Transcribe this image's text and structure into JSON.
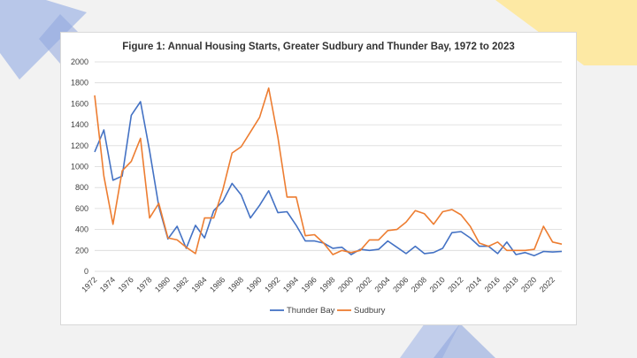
{
  "colors": {
    "thunder_bay": "#4472c4",
    "sudbury": "#ed7d31",
    "decor_blue": "#aebfe8",
    "decor_blue_dark": "#8fa6de",
    "decor_yellow": "#fde9a4",
    "grid": "#d9d9d9"
  },
  "chart_data": {
    "type": "line",
    "title": "Figure 1: Annual Housing Starts, Greater Sudbury and Thunder Bay, 1972 to 2023",
    "xlabel": "",
    "ylabel": "",
    "ylim": [
      0,
      2000
    ],
    "yticks": [
      0,
      200,
      400,
      600,
      800,
      1000,
      1200,
      1400,
      1600,
      1800,
      2000
    ],
    "xtick_labels": [
      "1972",
      "1974",
      "1976",
      "1978",
      "1980",
      "1982",
      "1984",
      "1986",
      "1988",
      "1990",
      "1992",
      "1994",
      "1996",
      "1998",
      "2000",
      "2002",
      "2004",
      "2006",
      "2008",
      "2010",
      "2012",
      "2014",
      "2016",
      "2018",
      "2020",
      "2022"
    ],
    "x": [
      1972,
      1973,
      1974,
      1975,
      1976,
      1977,
      1978,
      1979,
      1980,
      1981,
      1982,
      1983,
      1984,
      1985,
      1986,
      1987,
      1988,
      1989,
      1990,
      1991,
      1992,
      1993,
      1994,
      1995,
      1996,
      1997,
      1998,
      1999,
      2000,
      2001,
      2002,
      2003,
      2004,
      2005,
      2006,
      2007,
      2008,
      2009,
      2010,
      2011,
      2012,
      2013,
      2014,
      2015,
      2016,
      2017,
      2018,
      2019,
      2020,
      2021,
      2022,
      2023
    ],
    "grid": true,
    "legend": "bottom",
    "series": [
      {
        "name": "Thunder Bay",
        "values": [
          1140,
          1350,
          870,
          910,
          1490,
          1620,
          1150,
          620,
          310,
          430,
          220,
          440,
          320,
          580,
          670,
          840,
          730,
          510,
          630,
          770,
          560,
          570,
          440,
          290,
          290,
          270,
          220,
          230,
          160,
          210,
          200,
          210,
          290,
          230,
          170,
          240,
          170,
          180,
          220,
          370,
          380,
          320,
          240,
          240,
          170,
          280,
          160,
          180,
          150,
          190,
          185,
          190
        ]
      },
      {
        "name": "Sudbury",
        "values": [
          1680,
          910,
          450,
          960,
          1050,
          1270,
          510,
          650,
          320,
          300,
          230,
          170,
          510,
          510,
          780,
          1130,
          1190,
          1330,
          1470,
          1750,
          1280,
          710,
          710,
          340,
          350,
          270,
          160,
          200,
          180,
          200,
          300,
          300,
          390,
          400,
          470,
          580,
          550,
          450,
          570,
          590,
          540,
          430,
          270,
          240,
          280,
          200,
          200,
          200,
          210,
          430,
          280,
          260
        ]
      }
    ]
  }
}
